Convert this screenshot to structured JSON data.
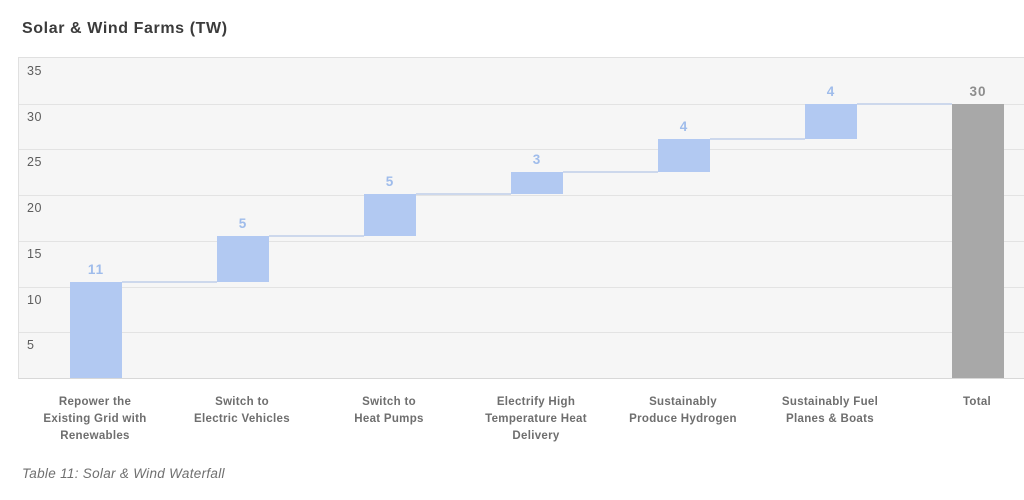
{
  "header": {
    "title": "Solar & Wind Farms (TW)"
  },
  "caption": "Table 11: Solar & Wind Waterfall",
  "chart_data": {
    "type": "waterfall",
    "title": "Solar & Wind Farms (TW)",
    "ylim": [
      0,
      35
    ],
    "yticks": [
      35,
      30,
      25,
      20,
      15,
      10,
      5
    ],
    "grid": true,
    "legend": "none",
    "bars": [
      {
        "category_lines": [
          "Repower the",
          "Existing Grid with",
          "Renewables"
        ],
        "label": "11",
        "value": 11,
        "plotted_start": 0,
        "plotted_end": 10.5,
        "kind": "step"
      },
      {
        "category_lines": [
          "Switch to",
          "Electric Vehicles"
        ],
        "label": "5",
        "value": 5,
        "plotted_start": 10.5,
        "plotted_end": 15.5,
        "kind": "step"
      },
      {
        "category_lines": [
          "Switch to",
          "Heat Pumps"
        ],
        "label": "5",
        "value": 5,
        "plotted_start": 15.5,
        "plotted_end": 20.1,
        "kind": "step"
      },
      {
        "category_lines": [
          "Electrify High",
          "Temperature Heat",
          "Delivery"
        ],
        "label": "3",
        "value": 3,
        "plotted_start": 20.1,
        "plotted_end": 22.5,
        "kind": "step"
      },
      {
        "category_lines": [
          "Sustainably",
          "Produce Hydrogen"
        ],
        "label": "4",
        "value": 4,
        "plotted_start": 22.5,
        "plotted_end": 26.1,
        "kind": "step"
      },
      {
        "category_lines": [
          "Sustainably Fuel",
          "Planes & Boats"
        ],
        "label": "4",
        "value": 4,
        "plotted_start": 26.1,
        "plotted_end": 30.0,
        "kind": "step"
      },
      {
        "category_lines": [
          "Total"
        ],
        "label": "30",
        "value": 30,
        "plotted_start": 0,
        "plotted_end": 30.0,
        "kind": "total"
      }
    ],
    "colors": {
      "step_fill": "#b2c9f2",
      "step_value_label": "#9fbceb",
      "total_fill": "#a8a8a8",
      "total_value_label": "#8d8d8d",
      "connector": "#cdd8ec",
      "plot_background": "#f6f6f6",
      "gridline": "#e3e3e3",
      "axis_text": "#5d5d5d",
      "category_text": "#6e6e6e",
      "title_text": "#3b3b3b",
      "caption_text": "#6f6f6f"
    }
  }
}
